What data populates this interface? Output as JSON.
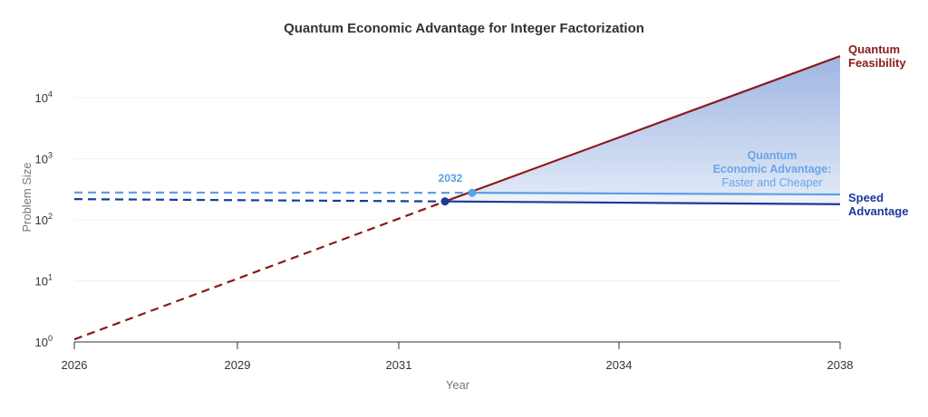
{
  "chart_data": {
    "type": "line",
    "title": "Quantum Economic Advantage for Integer Factorization",
    "xlabel": "Year",
    "ylabel": "Problem Size",
    "yscale": "log",
    "ylim": [
      1,
      50000
    ],
    "x_ticks": [
      "2026",
      "2029",
      "2031",
      "2034",
      "2038"
    ],
    "y_ticks": [
      {
        "base": "10",
        "exp": "0"
      },
      {
        "base": "10",
        "exp": "1"
      },
      {
        "base": "10",
        "exp": "2"
      },
      {
        "base": "10",
        "exp": "3"
      },
      {
        "base": "10",
        "exp": "4"
      }
    ],
    "grid": true,
    "series": [
      {
        "name": "Quantum Feasibility",
        "color": "#8b1a1a",
        "dashed": {
          "x": [
            2026,
            2031.63
          ],
          "y": [
            1.1,
            200
          ]
        },
        "solid": {
          "x": [
            2031.63,
            2038
          ],
          "y": [
            200,
            48000
          ]
        }
      },
      {
        "name": "Speed Advantage",
        "color": "#1a3a9c",
        "dashed": {
          "x": [
            2026,
            2031.63
          ],
          "y": [
            218,
            200
          ]
        },
        "solid": {
          "x": [
            2031.63,
            2038
          ],
          "y": [
            200,
            180
          ]
        }
      },
      {
        "name": "",
        "color": "#5aa0e8",
        "dashed": {
          "x": [
            2026,
            2032
          ],
          "y": [
            280,
            277
          ]
        },
        "solid": {
          "x": [
            2032,
            2038
          ],
          "y": [
            277,
            260
          ]
        }
      }
    ],
    "points": [
      {
        "x": 2031.63,
        "y": 200,
        "color": "#1a3a9c"
      },
      {
        "x": 2032,
        "y": 277,
        "color": "#5aa0e8",
        "label": "2032"
      }
    ],
    "region": {
      "label_line1": "Quantum",
      "label_line2": "Economic Advantage:",
      "label_line3": "Faster and Cheaper",
      "color": "#5b7fcf"
    },
    "labels": {
      "feasibility": [
        "Quantum",
        "Feasibility"
      ],
      "speed": [
        "Speed",
        "Advantage"
      ]
    }
  }
}
